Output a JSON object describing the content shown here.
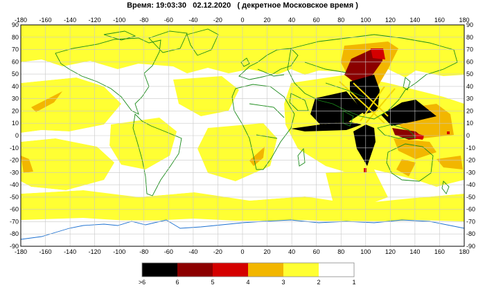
{
  "header": {
    "time_label": "Время: 19:03:30",
    "date": "02.12.2020",
    "zone": "( декретное Московское время )"
  },
  "map": {
    "x_ticks": [
      "-180",
      "-160",
      "-140",
      "-120",
      "-100",
      "-80",
      "-60",
      "-40",
      "-20",
      "0",
      "20",
      "40",
      "60",
      "80",
      "100",
      "120",
      "140",
      "160",
      "180"
    ],
    "y_ticks": [
      "90",
      "80",
      "70",
      "60",
      "50",
      "40",
      "30",
      "20",
      "10",
      "0",
      "-10",
      "-20",
      "-30",
      "-40",
      "-50",
      "-60",
      "-70",
      "-80",
      "-90"
    ],
    "lon_range": [
      -180,
      180
    ],
    "lat_range": [
      -90,
      90
    ],
    "grid": true,
    "colors": {
      "coast": "#1a8a1a",
      "antarctic": "#1a6fd0",
      "grid": "#c8c8c8"
    }
  },
  "legend": {
    "items": [
      {
        "label": ">6",
        "color": "#000000"
      },
      {
        "label": "6",
        "color": "#8b0000"
      },
      {
        "label": "5",
        "color": "#d40000"
      },
      {
        "label": "4",
        "color": "#f2b600"
      },
      {
        "label": "3",
        "color": "#ffff33"
      },
      {
        "label": "2",
        "color": "#ffffff"
      },
      {
        "label": "1",
        "color": ""
      }
    ]
  }
}
